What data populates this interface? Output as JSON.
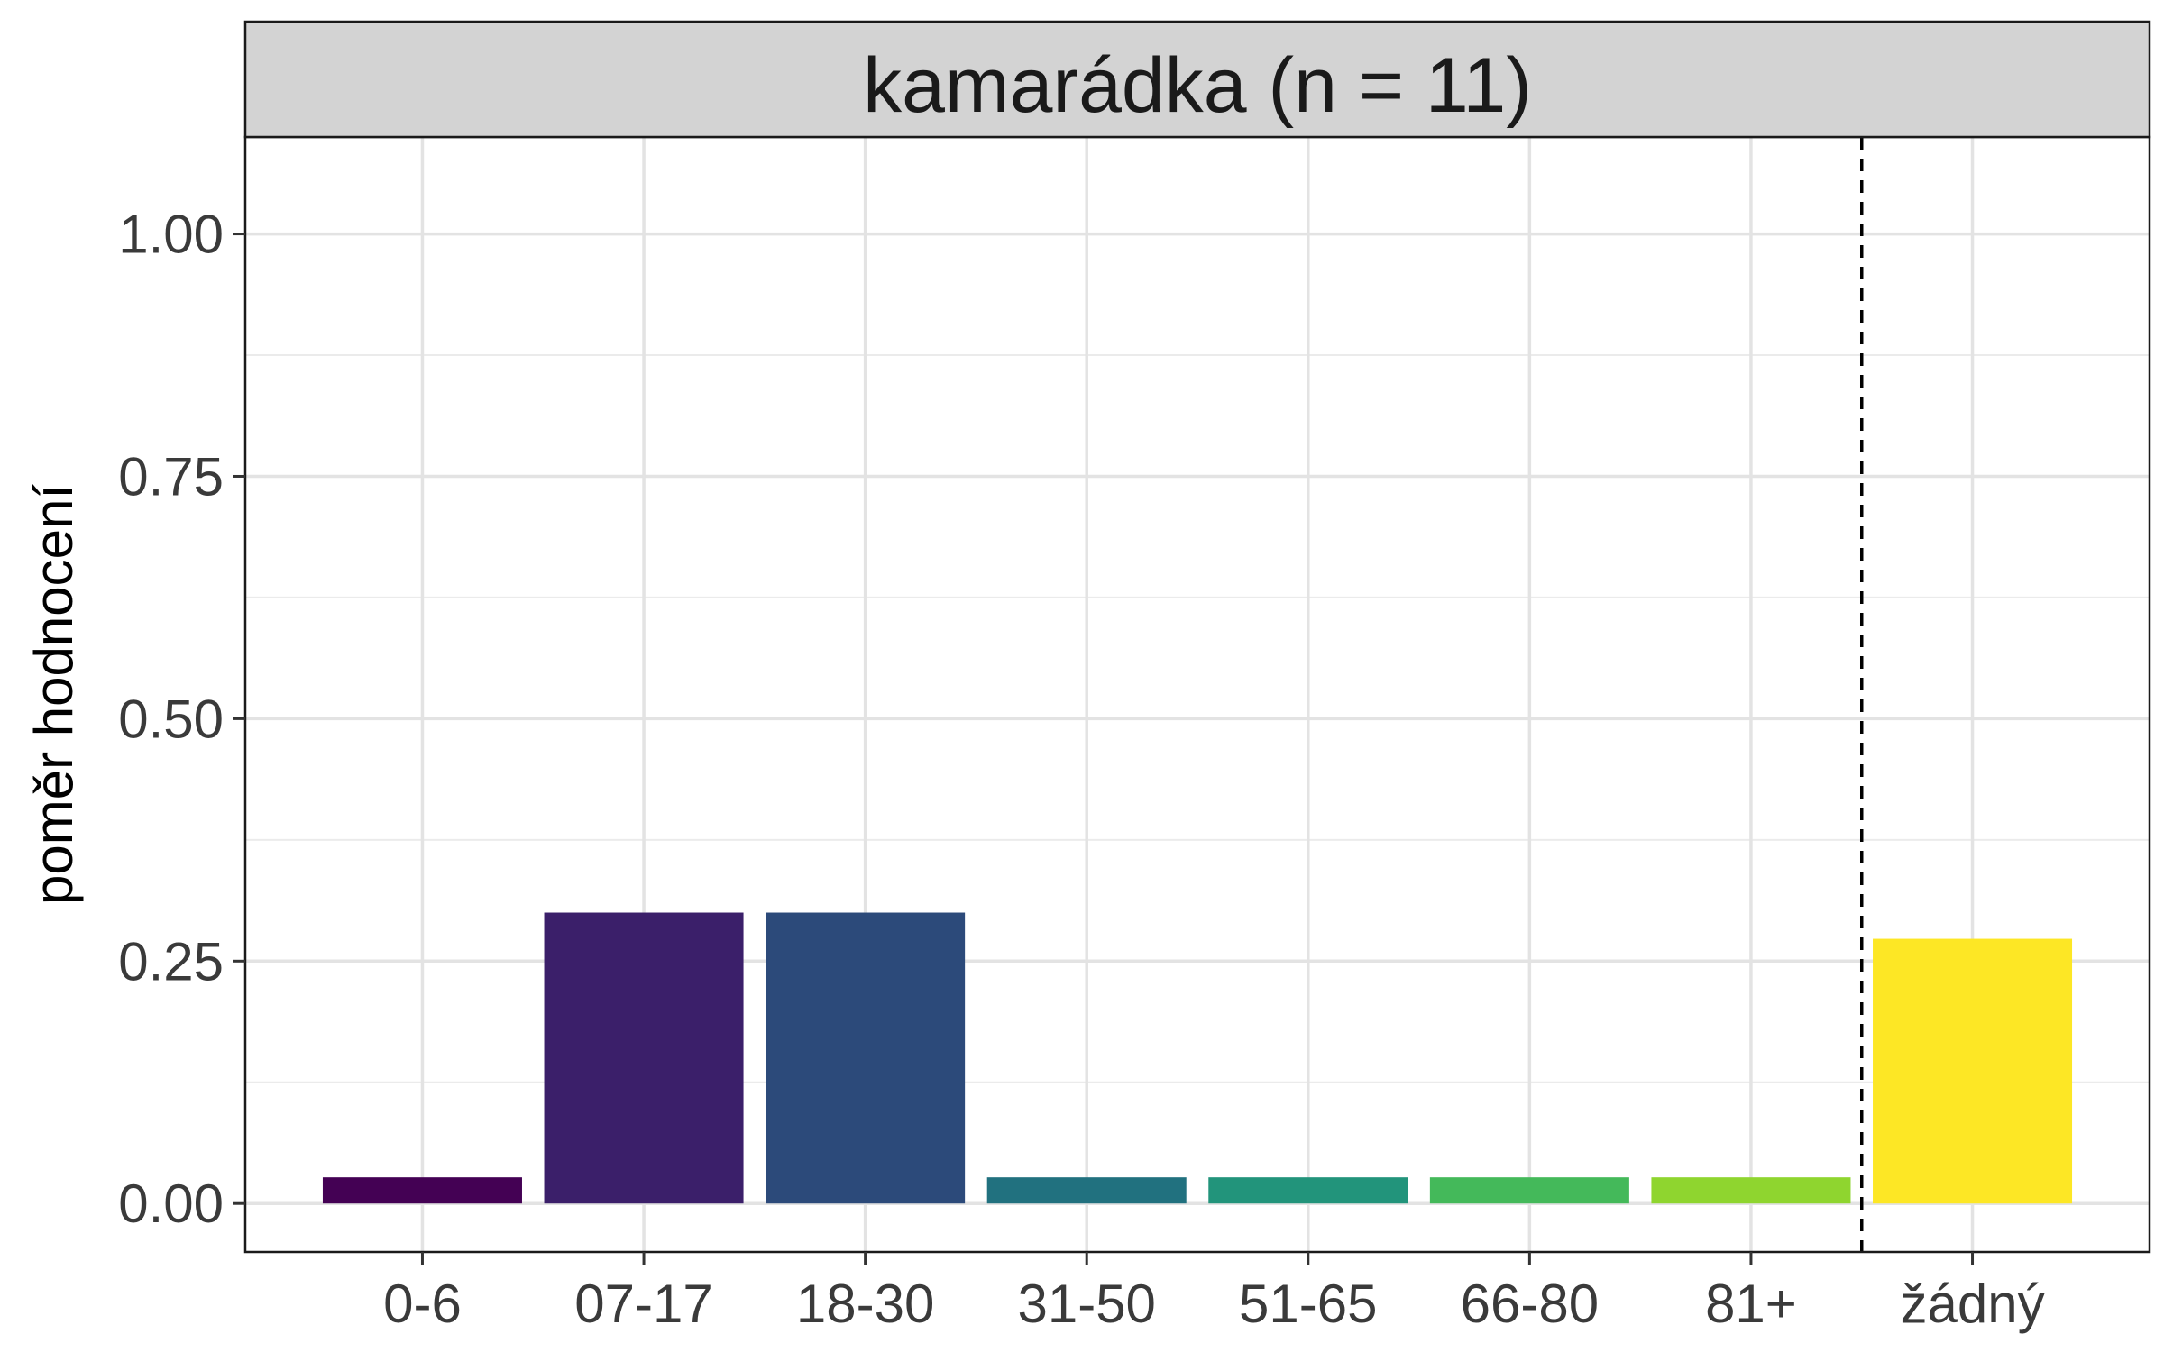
{
  "chart_data": {
    "type": "bar",
    "panel_title": "kamarádka (n = 11)",
    "xlabel": "",
    "ylabel": "poměr hodnocení",
    "categories": [
      "0-6",
      "07-17",
      "18-30",
      "31-50",
      "51-65",
      "66-80",
      "81+",
      "žádný"
    ],
    "values": [
      0.027,
      0.3,
      0.3,
      0.027,
      0.027,
      0.027,
      0.027,
      0.273
    ],
    "colors": [
      "#440154",
      "#3b1f6a",
      "#2c4a7a",
      "#21717f",
      "#22947b",
      "#44b95a",
      "#8fd52f",
      "#fde725"
    ],
    "ylim": [
      -0.05,
      1.1
    ],
    "yticks": [
      0.0,
      0.25,
      0.5,
      0.75,
      1.0
    ],
    "ytick_labels": [
      "0.00",
      "0.25",
      "0.50",
      "0.75",
      "1.00"
    ],
    "separator_between": [
      6,
      7
    ],
    "grid": true,
    "legend": "none"
  }
}
